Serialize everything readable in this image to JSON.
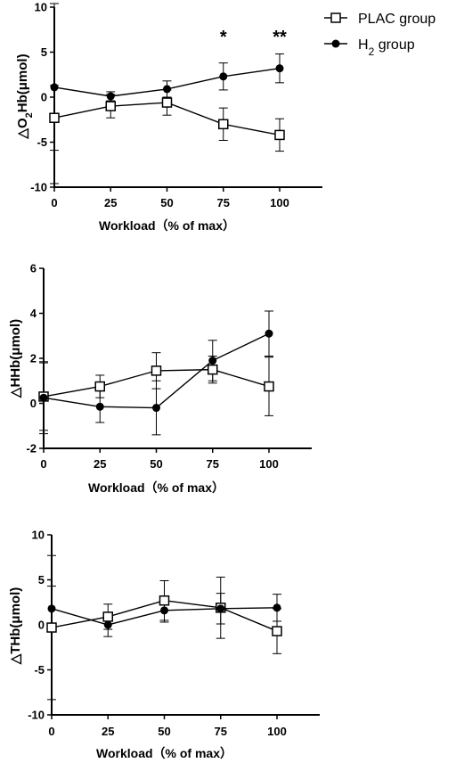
{
  "legend": {
    "items": [
      {
        "name": "PLAC group",
        "marker": "open-square"
      },
      {
        "name": "H",
        "sub": "2",
        "tail": " group",
        "marker": "filled-circle"
      }
    ]
  },
  "colors": {
    "line": "#000000",
    "background": "#ffffff"
  },
  "chart_data": [
    {
      "type": "line",
      "ylabel": {
        "pre": "△O",
        "sub": "2",
        "post": "Hb(μmol)"
      },
      "xlabel": "Workload（% of max）",
      "x": [
        0,
        25,
        50,
        75,
        100
      ],
      "xticks": [
        "0",
        "25",
        "50",
        "75",
        "100"
      ],
      "xlim": [
        0,
        115
      ],
      "ylim": [
        -10,
        10
      ],
      "yticks": [
        -10,
        -5,
        0,
        5,
        10
      ],
      "grid": false,
      "annotations": [
        {
          "x": 75,
          "text": "*"
        },
        {
          "x": 100,
          "text": "**"
        }
      ],
      "series": [
        {
          "name": "PLAC group",
          "marker": "open-square",
          "values": [
            -2.3,
            -1.0,
            -0.6,
            -3.0,
            -4.2
          ],
          "errors": [
            3.6,
            1.3,
            1.4,
            1.8,
            1.8
          ]
        },
        {
          "name": "H2 group",
          "marker": "filled-circle",
          "values": [
            1.1,
            0.1,
            0.9,
            2.3,
            3.2
          ],
          "errors": [
            10.7,
            0.5,
            0.9,
            1.5,
            1.6
          ]
        }
      ]
    },
    {
      "type": "line",
      "ylabel": {
        "pre": "△HHb(μmol)"
      },
      "xlabel": "Workload（% of max）",
      "x": [
        0,
        25,
        50,
        75,
        100
      ],
      "xticks": [
        "0",
        "25",
        "50",
        "75",
        "100"
      ],
      "xlim": [
        0,
        115
      ],
      "ylim": [
        -2,
        6
      ],
      "yticks": [
        -2,
        0,
        2,
        4,
        6
      ],
      "grid": false,
      "series": [
        {
          "name": "PLAC group",
          "marker": "open-square",
          "values": [
            0.3,
            0.75,
            1.45,
            1.5,
            0.75
          ],
          "errors": [
            1.5,
            0.5,
            0.8,
            0.6,
            1.3
          ]
        },
        {
          "name": "H2 group",
          "marker": "filled-circle",
          "values": [
            0.25,
            -0.15,
            -0.2,
            1.9,
            3.1
          ],
          "errors": [
            1.6,
            0.7,
            1.2,
            0.9,
            1.0
          ]
        }
      ]
    },
    {
      "type": "line",
      "ylabel": {
        "pre": "△THb(μmol)"
      },
      "xlabel": "Workload（% of max）",
      "x": [
        0,
        25,
        50,
        75,
        100
      ],
      "xticks": [
        "0",
        "25",
        "50",
        "75",
        "100"
      ],
      "xlim": [
        0,
        115
      ],
      "ylim": [
        -10,
        10
      ],
      "yticks": [
        -10,
        -5,
        0,
        5,
        10
      ],
      "grid": false,
      "series": [
        {
          "name": "PLAC group",
          "marker": "open-square",
          "values": [
            -0.3,
            0.9,
            2.7,
            1.9,
            -0.7
          ],
          "errors": [
            8.0,
            1.4,
            2.2,
            3.4,
            2.5
          ]
        },
        {
          "name": "H2 group",
          "marker": "filled-circle",
          "values": [
            1.8,
            0.0,
            1.6,
            1.8,
            1.9
          ],
          "errors": [
            2.5,
            1.3,
            1.3,
            1.7,
            1.5
          ]
        }
      ]
    }
  ]
}
